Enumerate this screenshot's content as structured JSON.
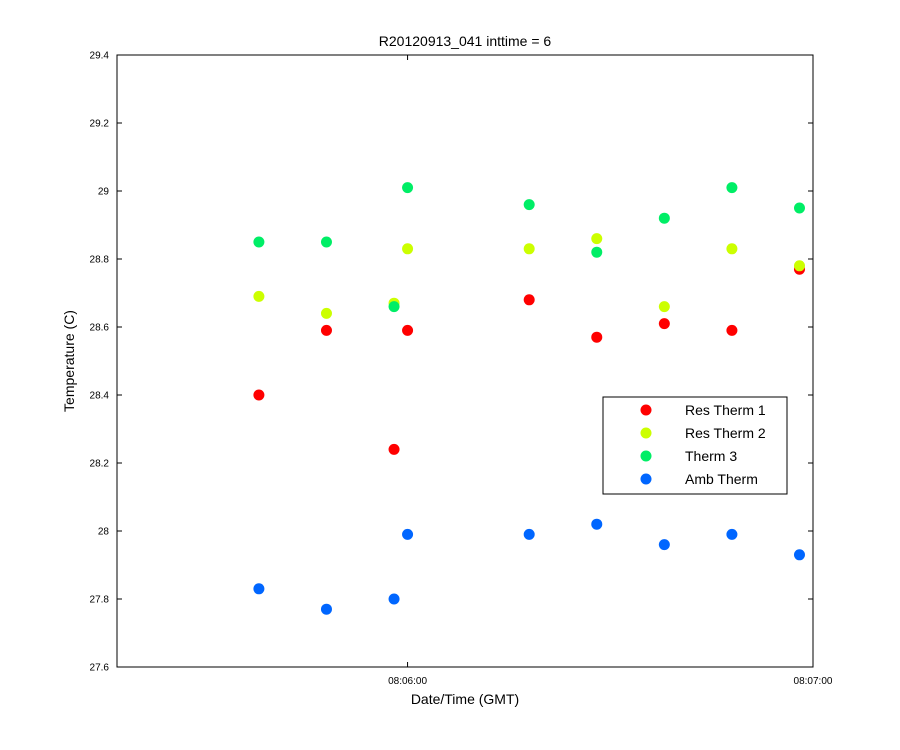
{
  "chart_data": {
    "type": "scatter",
    "title": "R20120913_041 inttime = 6",
    "xlabel": "Date/Time (GMT)",
    "ylabel": "Temperature (C)",
    "xlim": [
      "08:05:17",
      "08:07:00"
    ],
    "ylim": [
      27.6,
      29.4
    ],
    "y_ticks": [
      "27.6",
      "27.8",
      "28",
      "28.2",
      "28.4",
      "28.6",
      "28.8",
      "29",
      "29.2",
      "29.4"
    ],
    "x_ticks": [
      "08:06:00",
      "08:07:00"
    ],
    "grid": false,
    "legend": "right-middle",
    "x": [
      "08:05:38",
      "08:05:48",
      "08:05:58",
      "08:06:00",
      "08:06:18",
      "08:06:28",
      "08:06:38",
      "08:06:48",
      "08:06:58"
    ],
    "series": [
      {
        "name": "Res Therm 1",
        "color": "#ff0000",
        "values": [
          28.4,
          28.59,
          28.24,
          28.59,
          28.68,
          28.57,
          28.61,
          28.59,
          28.77
        ]
      },
      {
        "name": "Res Therm 2",
        "color": "#ccff00",
        "values": [
          28.69,
          28.64,
          28.67,
          28.83,
          28.83,
          28.86,
          28.66,
          28.83,
          28.78
        ]
      },
      {
        "name": "Therm 3",
        "color": "#00ee66",
        "values": [
          28.85,
          28.85,
          28.66,
          29.01,
          28.96,
          28.82,
          28.92,
          29.01,
          28.95
        ]
      },
      {
        "name": "Amb Therm",
        "color": "#0066ff",
        "values": [
          27.83,
          27.77,
          27.8,
          27.99,
          27.99,
          28.02,
          27.96,
          27.99,
          27.93
        ]
      }
    ]
  }
}
